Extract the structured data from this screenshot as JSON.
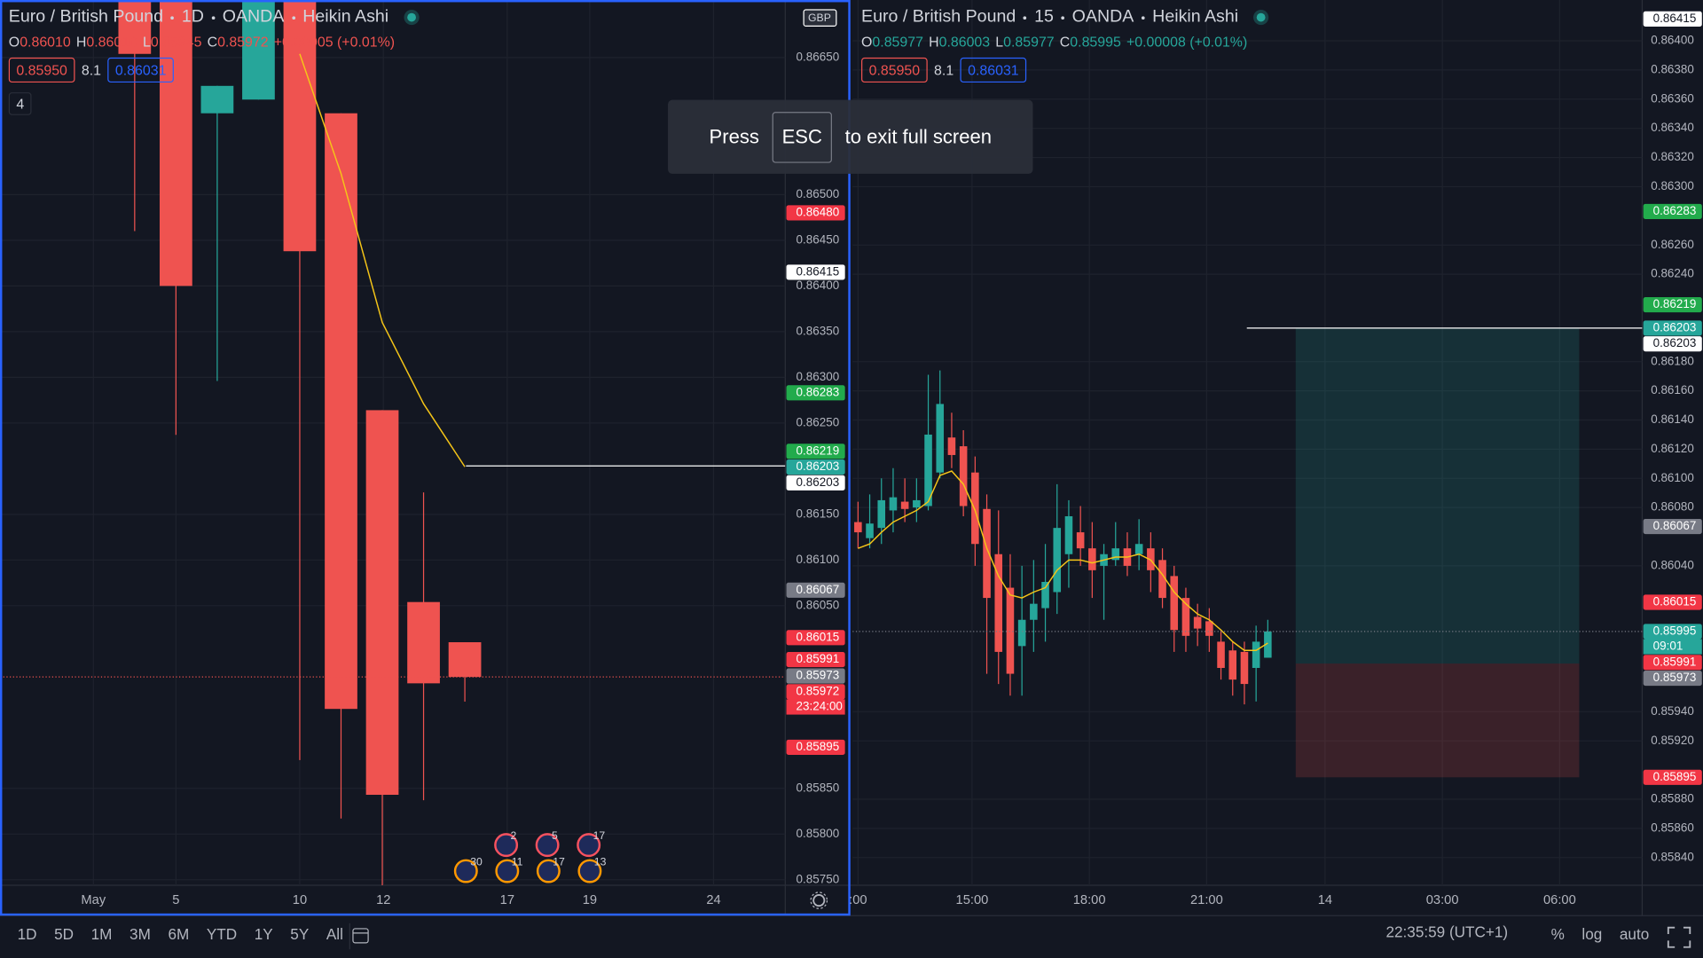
{
  "left": {
    "header": {
      "symbol": "Euro / British Pound",
      "interval": "1D",
      "exchange": "OANDA",
      "style": "Heikin Ashi"
    },
    "ohlc": [
      {
        "label": "O",
        "value": "0.86010"
      },
      {
        "label": "H",
        "value": "0.86010"
      },
      {
        "label": "L",
        "value": "0.85945"
      },
      {
        "label": "C",
        "value": "0.85972"
      }
    ],
    "change": "+0.00005 (+0.01%)",
    "sell": "0.85950",
    "spread": "8.1",
    "buy": "0.86031",
    "indicators": "4",
    "currency": "GBP",
    "ylim": [
      0.85744,
      0.86713
    ],
    "yticks": [
      {
        "value": 0.8665,
        "label": "0.86650"
      },
      {
        "value": 0.865,
        "label": "0.86500"
      },
      {
        "value": 0.8645,
        "label": "0.86450"
      },
      {
        "value": 0.864,
        "label": "0.86400"
      },
      {
        "value": 0.8635,
        "label": "0.86350"
      },
      {
        "value": 0.863,
        "label": "0.86300"
      },
      {
        "value": 0.8625,
        "label": "0.86250"
      },
      {
        "value": 0.8615,
        "label": "0.86150"
      },
      {
        "value": 0.861,
        "label": "0.86100"
      },
      {
        "value": 0.8605,
        "label": "0.86050"
      },
      {
        "value": 0.8585,
        "label": "0.85850"
      },
      {
        "value": 0.858,
        "label": "0.85800"
      },
      {
        "value": 0.8575,
        "label": "0.85750"
      }
    ],
    "xticks": [
      "May",
      "5",
      "10",
      "12",
      "17",
      "19",
      "24"
    ],
    "candles": [
      {
        "o": 0.8672,
        "h": 0.8673,
        "l": 0.8646,
        "c": 0.86654
      },
      {
        "o": 0.8673,
        "h": 0.8674,
        "l": 0.86237,
        "c": 0.864
      },
      {
        "o": 0.86589,
        "h": 0.86619,
        "l": 0.86296,
        "c": 0.86619
      },
      {
        "o": 0.86604,
        "h": 0.8674,
        "l": 0.86604,
        "c": 0.8673
      },
      {
        "o": 0.8672,
        "h": 0.8673,
        "l": 0.85881,
        "c": 0.86438
      },
      {
        "o": 0.86589,
        "h": 0.86589,
        "l": 0.85817,
        "c": 0.85937
      },
      {
        "o": 0.86264,
        "h": 0.86264,
        "l": 0.85744,
        "c": 0.85843
      },
      {
        "o": 0.86054,
        "h": 0.86174,
        "l": 0.85837,
        "c": 0.85965
      },
      {
        "o": 0.8601,
        "h": 0.8601,
        "l": 0.85945,
        "c": 0.85972
      }
    ],
    "ma": [
      null,
      null,
      null,
      null,
      0.86654,
      0.86523,
      0.8636,
      0.86271,
      0.86202
    ],
    "hline": 0.86203,
    "badges": [
      {
        "value": 0.8648,
        "label": "0.86480",
        "bg": "#f23645",
        "fg": "#ffffff"
      },
      {
        "value": 0.86415,
        "label": "0.86415",
        "bg": "#ffffff",
        "fg": "#131722"
      },
      {
        "value": 0.86283,
        "label": "0.86283",
        "bg": "#22ab4c",
        "fg": "#ffffff"
      },
      {
        "value": 0.86219,
        "label": "0.86219",
        "bg": "#22ab4c",
        "fg": "#ffffff"
      },
      {
        "value": 0.86203,
        "label": "0.86203",
        "bg": "#26a69a",
        "fg": "#ffffff"
      },
      {
        "value": 0.86203,
        "label": "0.86203",
        "bg": "#ffffff",
        "fg": "#131722"
      },
      {
        "value": 0.86067,
        "label": "0.86067",
        "bg": "#787b86",
        "fg": "#ffffff"
      },
      {
        "value": 0.86015,
        "label": "0.86015",
        "bg": "#f23645",
        "fg": "#ffffff"
      },
      {
        "value": 0.85991,
        "label": "0.85991",
        "bg": "#f23645",
        "fg": "#ffffff"
      },
      {
        "value": 0.85973,
        "label": "0.85973",
        "bg": "#787b86",
        "fg": "#ffffff"
      },
      {
        "value": 0.85972,
        "label": "0.85972",
        "bg": "#f23645",
        "fg": "#ffffff",
        "sub": "23:24:00"
      },
      {
        "value": 0.85895,
        "label": "0.85895",
        "bg": "#f23645",
        "fg": "#ffffff"
      }
    ],
    "events": [
      {
        "kind": "uk",
        "count": "2"
      },
      {
        "kind": "uk",
        "count": "5"
      },
      {
        "kind": "uk",
        "count": "17"
      },
      {
        "kind": "eu",
        "count": "30"
      },
      {
        "kind": "eu",
        "count": "11"
      },
      {
        "kind": "eu",
        "count": "17"
      },
      {
        "kind": "eu",
        "count": "13"
      }
    ]
  },
  "right": {
    "header": {
      "symbol": "Euro / British Pound",
      "interval": "15",
      "exchange": "OANDA",
      "style": "Heikin Ashi"
    },
    "ohlc": [
      {
        "label": "O",
        "value": "0.85977"
      },
      {
        "label": "H",
        "value": "0.86003"
      },
      {
        "label": "L",
        "value": "0.85977"
      },
      {
        "label": "C",
        "value": "0.85995"
      }
    ],
    "change": "+0.00008 (+0.01%)",
    "sell": "0.85950",
    "spread": "8.1",
    "buy": "0.86031",
    "ylim": [
      0.85821,
      0.86428
    ],
    "yticks": [
      {
        "value": 0.864,
        "label": "0.86400"
      },
      {
        "value": 0.8638,
        "label": "0.86380"
      },
      {
        "value": 0.8636,
        "label": "0.86360"
      },
      {
        "value": 0.8634,
        "label": "0.86340"
      },
      {
        "value": 0.8632,
        "label": "0.86320"
      },
      {
        "value": 0.863,
        "label": "0.86300"
      },
      {
        "value": 0.8626,
        "label": "0.86260"
      },
      {
        "value": 0.8624,
        "label": "0.86240"
      },
      {
        "value": 0.8618,
        "label": "0.86180"
      },
      {
        "value": 0.8616,
        "label": "0.86160"
      },
      {
        "value": 0.8614,
        "label": "0.86140"
      },
      {
        "value": 0.8612,
        "label": "0.86120"
      },
      {
        "value": 0.861,
        "label": "0.86100"
      },
      {
        "value": 0.8608,
        "label": "0.86080"
      },
      {
        "value": 0.8604,
        "label": "0.86040"
      },
      {
        "value": 0.8594,
        "label": "0.85940"
      },
      {
        "value": 0.8592,
        "label": "0.85920"
      },
      {
        "value": 0.8588,
        "label": "0.85880"
      },
      {
        "value": 0.8586,
        "label": "0.85860"
      },
      {
        "value": 0.8584,
        "label": "0.85840"
      }
    ],
    "xticks": [
      ":00",
      "15:00",
      "18:00",
      "21:00",
      "14",
      "03:00",
      "06:00"
    ],
    "candles": [
      {
        "o": 0.8607,
        "h": 0.86084,
        "l": 0.86052,
        "c": 0.86063
      },
      {
        "o": 0.86059,
        "h": 0.86089,
        "l": 0.86052,
        "c": 0.86069
      },
      {
        "o": 0.86066,
        "h": 0.861,
        "l": 0.86055,
        "c": 0.86085
      },
      {
        "o": 0.86078,
        "h": 0.86107,
        "l": 0.86063,
        "c": 0.86087
      },
      {
        "o": 0.86084,
        "h": 0.861,
        "l": 0.8607,
        "c": 0.86079
      },
      {
        "o": 0.8608,
        "h": 0.861,
        "l": 0.8607,
        "c": 0.86085
      },
      {
        "o": 0.86081,
        "h": 0.86171,
        "l": 0.86078,
        "c": 0.8613
      },
      {
        "o": 0.86104,
        "h": 0.86174,
        "l": 0.861,
        "c": 0.86151
      },
      {
        "o": 0.86128,
        "h": 0.86145,
        "l": 0.86107,
        "c": 0.86116
      },
      {
        "o": 0.86122,
        "h": 0.86133,
        "l": 0.86074,
        "c": 0.86081
      },
      {
        "o": 0.86104,
        "h": 0.86115,
        "l": 0.8604,
        "c": 0.86055
      },
      {
        "o": 0.86079,
        "h": 0.86089,
        "l": 0.85966,
        "c": 0.86018
      },
      {
        "o": 0.86048,
        "h": 0.86078,
        "l": 0.85959,
        "c": 0.85981
      },
      {
        "o": 0.86025,
        "h": 0.86048,
        "l": 0.85951,
        "c": 0.85966
      },
      {
        "o": 0.85985,
        "h": 0.8604,
        "l": 0.85951,
        "c": 0.86003
      },
      {
        "o": 0.86003,
        "h": 0.86044,
        "l": 0.85981,
        "c": 0.86014
      },
      {
        "o": 0.86011,
        "h": 0.86055,
        "l": 0.85988,
        "c": 0.86029
      },
      {
        "o": 0.86022,
        "h": 0.86096,
        "l": 0.86007,
        "c": 0.86066
      },
      {
        "o": 0.86048,
        "h": 0.86085,
        "l": 0.86025,
        "c": 0.86074
      },
      {
        "o": 0.86063,
        "h": 0.86081,
        "l": 0.8604,
        "c": 0.86052
      },
      {
        "o": 0.86052,
        "h": 0.8607,
        "l": 0.86018,
        "c": 0.86037
      },
      {
        "o": 0.8604,
        "h": 0.86055,
        "l": 0.86003,
        "c": 0.86048
      },
      {
        "o": 0.86044,
        "h": 0.8607,
        "l": 0.8604,
        "c": 0.86052
      },
      {
        "o": 0.86052,
        "h": 0.86063,
        "l": 0.86033,
        "c": 0.8604
      },
      {
        "o": 0.86048,
        "h": 0.86072,
        "l": 0.86037,
        "c": 0.86055
      },
      {
        "o": 0.86052,
        "h": 0.86063,
        "l": 0.86022,
        "c": 0.86037
      },
      {
        "o": 0.86044,
        "h": 0.86052,
        "l": 0.86011,
        "c": 0.86018
      },
      {
        "o": 0.86033,
        "h": 0.8604,
        "l": 0.85981,
        "c": 0.85996
      },
      {
        "o": 0.86018,
        "h": 0.86025,
        "l": 0.85981,
        "c": 0.85992
      },
      {
        "o": 0.86005,
        "h": 0.86014,
        "l": 0.85985,
        "c": 0.85997
      },
      {
        "o": 0.86002,
        "h": 0.86011,
        "l": 0.85981,
        "c": 0.85992
      },
      {
        "o": 0.85988,
        "h": 0.85996,
        "l": 0.85962,
        "c": 0.8597
      },
      {
        "o": 0.85982,
        "h": 0.85988,
        "l": 0.85951,
        "c": 0.85962
      },
      {
        "o": 0.85981,
        "h": 0.85988,
        "l": 0.85945,
        "c": 0.85959
      },
      {
        "o": 0.8597,
        "h": 0.85999,
        "l": 0.85947,
        "c": 0.85988
      },
      {
        "o": 0.85977,
        "h": 0.86003,
        "l": 0.85977,
        "c": 0.85995
      }
    ],
    "ma": [
      0.86052,
      0.86055,
      0.86063,
      0.8607,
      0.86074,
      0.86078,
      0.86084,
      0.86102,
      0.86105,
      0.86096,
      0.86078,
      0.86052,
      0.86033,
      0.8602,
      0.86018,
      0.86022,
      0.86025,
      0.86037,
      0.86044,
      0.86044,
      0.86042,
      0.86044,
      0.86046,
      0.86046,
      0.86048,
      0.86044,
      0.86034,
      0.86022,
      0.86014,
      0.86007,
      0.86003,
      0.85996,
      0.85988,
      0.85982,
      0.85982,
      0.85987
    ],
    "hline": 0.86203,
    "position": {
      "target": 0.86203,
      "entry": 0.85973,
      "stop": 0.85895
    },
    "badges": [
      {
        "value": 0.86415,
        "label": "0.86415",
        "bg": "#ffffff",
        "fg": "#131722"
      },
      {
        "value": 0.86283,
        "label": "0.86283",
        "bg": "#22ab4c",
        "fg": "#ffffff"
      },
      {
        "value": 0.86219,
        "label": "0.86219",
        "bg": "#22ab4c",
        "fg": "#ffffff"
      },
      {
        "value": 0.86203,
        "label": "0.86203",
        "bg": "#26a69a",
        "fg": "#ffffff"
      },
      {
        "value": 0.86203,
        "label": "0.86203",
        "bg": "#ffffff",
        "fg": "#131722"
      },
      {
        "value": 0.86067,
        "label": "0.86067",
        "bg": "#787b86",
        "fg": "#ffffff"
      },
      {
        "value": 0.86015,
        "label": "0.86015",
        "bg": "#f23645",
        "fg": "#ffffff"
      },
      {
        "value": 0.85995,
        "label": "0.85995",
        "bg": "#26a69a",
        "fg": "#ffffff",
        "sub": "09:01"
      },
      {
        "value": 0.85991,
        "label": "0.85991",
        "bg": "#f23645",
        "fg": "#ffffff"
      },
      {
        "value": 0.85973,
        "label": "0.85973",
        "bg": "#787b86",
        "fg": "#ffffff"
      },
      {
        "value": 0.85895,
        "label": "0.85895",
        "bg": "#f23645",
        "fg": "#ffffff"
      }
    ]
  },
  "overlay": {
    "before": "Press",
    "key": "ESC",
    "after": "to exit full screen"
  },
  "toolbar": {
    "ranges": [
      "1D",
      "5D",
      "1M",
      "3M",
      "6M",
      "YTD",
      "1Y",
      "5Y",
      "All"
    ],
    "clock": "22:35:59 (UTC+1)",
    "percent": "%",
    "log": "log",
    "auto": "auto"
  }
}
